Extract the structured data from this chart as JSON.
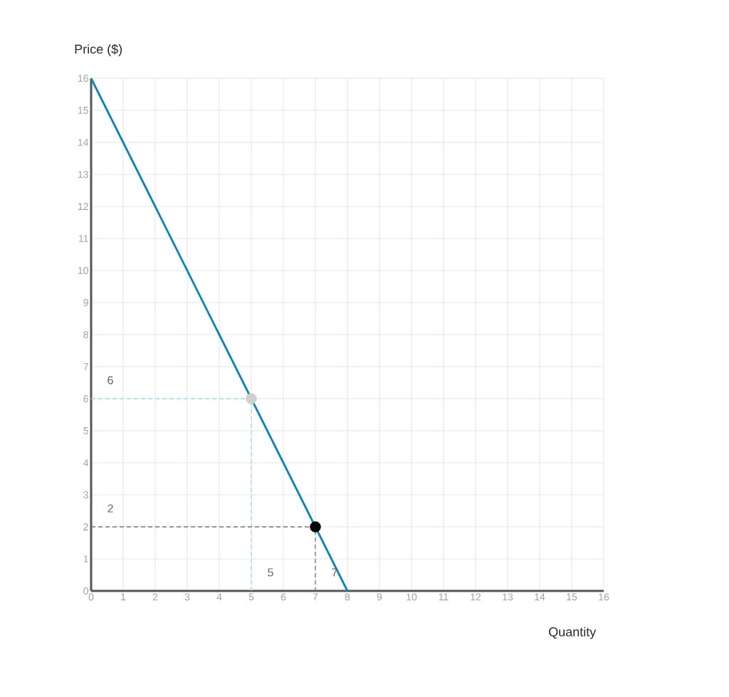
{
  "chart_data": {
    "type": "line",
    "xlabel": "Quantity",
    "ylabel": "Price ($)",
    "xlim": [
      0,
      16
    ],
    "ylim": [
      0,
      16
    ],
    "xticks": [
      0,
      1,
      2,
      3,
      4,
      5,
      6,
      7,
      8,
      9,
      10,
      11,
      12,
      13,
      14,
      15,
      16
    ],
    "yticks": [
      0,
      1,
      2,
      3,
      4,
      5,
      6,
      7,
      8,
      9,
      10,
      11,
      12,
      13,
      14,
      15,
      16
    ],
    "grid": true,
    "series": [
      {
        "color": "#1a84ac",
        "x": [
          0,
          8
        ],
        "values": [
          16,
          0
        ],
        "line_style": "solid"
      },
      {
        "color": "#a6d8ea",
        "x": [
          0,
          5,
          5
        ],
        "values": [
          6,
          6,
          0
        ],
        "line_style": "dashed"
      },
      {
        "color": "#777777",
        "x": [
          0,
          7,
          7
        ],
        "values": [
          2,
          2,
          0
        ],
        "line_style": "dashed"
      },
      {
        "type": "scatter",
        "color": "#d0d0d0",
        "x": [
          5
        ],
        "values": [
          6
        ],
        "marker": "circle"
      },
      {
        "type": "scatter",
        "color": "#000000",
        "x": [
          7
        ],
        "values": [
          2
        ],
        "marker": "circle"
      }
    ],
    "annotations": [
      {
        "text": "6",
        "x": 0,
        "y": 6
      },
      {
        "text": "2",
        "x": 0,
        "y": 2
      },
      {
        "text": "5",
        "x": 5,
        "y": 0
      },
      {
        "text": "7",
        "x": 7,
        "y": 0
      }
    ]
  }
}
